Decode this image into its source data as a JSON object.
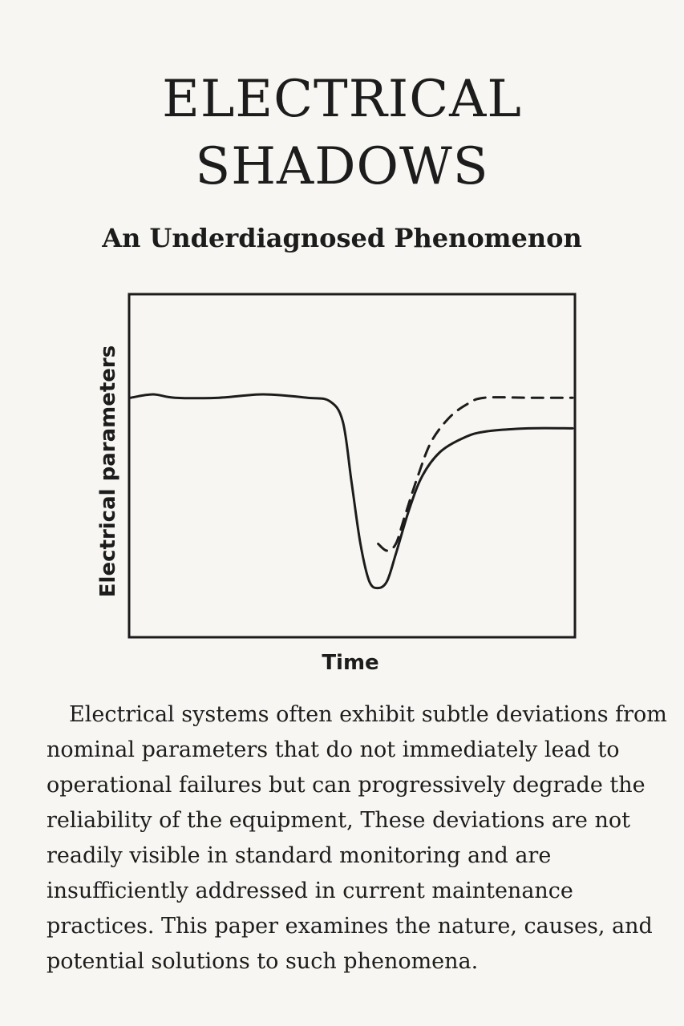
{
  "title_lines": [
    "ELECTRICAL",
    "SHADOWS"
  ],
  "subtitle": "An Underdiagnosed Phenomenon",
  "chart_data": {
    "type": "line",
    "xlabel": "Time",
    "ylabel": "Electrical parameters",
    "grid": false,
    "series": [
      {
        "style": "solid",
        "x": [
          0,
          0.05,
          0.1,
          0.2,
          0.3,
          0.4,
          0.45,
          0.48,
          0.5,
          0.52,
          0.54,
          0.56,
          0.58,
          0.6,
          0.63,
          0.66,
          0.7,
          0.75,
          0.8,
          0.9,
          1.0
        ],
        "y": [
          0.7,
          0.71,
          0.7,
          0.7,
          0.71,
          0.7,
          0.69,
          0.63,
          0.45,
          0.27,
          0.16,
          0.14,
          0.16,
          0.24,
          0.37,
          0.47,
          0.54,
          0.58,
          0.6,
          0.61,
          0.61
        ]
      },
      {
        "style": "dashed",
        "x": [
          0.56,
          0.58,
          0.6,
          0.62,
          0.65,
          0.68,
          0.72,
          0.76,
          0.8,
          0.9,
          1.0
        ],
        "y": [
          0.27,
          0.25,
          0.27,
          0.35,
          0.47,
          0.57,
          0.64,
          0.68,
          0.7,
          0.7,
          0.7
        ]
      }
    ]
  },
  "abstract": "Electrical systems often exhibit subtle deviations from nominal parameters that do not immediately lead to operational failures but can progressively degrade the reliability of the equipment, These deviations are not readily visible in standard monitoring and are insufficiently addressed in current maintenance practices. This paper examines the nature, causes, and potential solutions to such phenomena."
}
